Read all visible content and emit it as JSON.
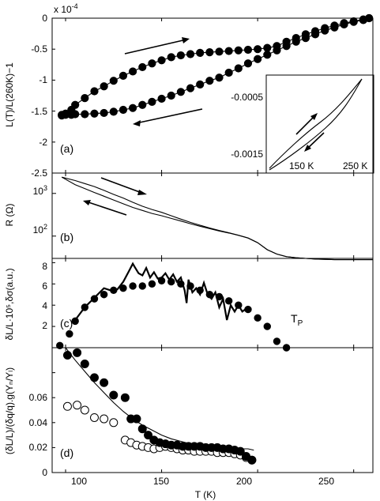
{
  "chart_data": [
    {
      "type": "line",
      "panel_label": "(a)",
      "ylabel": "L(T)/L(260K)−1",
      "y_exponent_label": "x 10",
      "y_exponent_power": "-4",
      "ylim": [
        -2.5,
        0
      ],
      "yticks": [
        "0",
        "-0.5",
        "-1",
        "-1.5",
        "-2",
        "-2.5"
      ],
      "xlim": [
        93,
        260
      ],
      "series": [
        {
          "x": [
            98,
            100,
            103,
            105,
            110,
            115,
            120,
            125,
            130,
            135,
            140,
            145,
            150,
            155,
            160,
            165,
            170,
            175,
            180,
            185,
            190,
            195,
            200,
            205,
            210,
            215,
            220,
            225,
            230,
            235,
            240,
            245,
            250,
            255,
            258
          ],
          "y": [
            -1.56,
            -1.54,
            -1.48,
            -1.4,
            -1.29,
            -1.18,
            -1.1,
            -1.01,
            -0.93,
            -0.86,
            -0.79,
            -0.73,
            -0.68,
            -0.63,
            -0.6,
            -0.58,
            -0.56,
            -0.55,
            -0.54,
            -0.53,
            -0.52,
            -0.51,
            -0.5,
            -0.48,
            -0.45,
            -0.38,
            -0.32,
            -0.26,
            -0.21,
            -0.16,
            -0.12,
            -0.08,
            -0.05,
            -0.02,
            0.0
          ]
        },
        {
          "x": [
            98,
            100,
            103,
            105,
            110,
            115,
            120,
            125,
            130,
            135,
            140,
            145,
            150,
            155,
            160,
            165,
            170,
            175,
            180,
            185,
            190,
            195,
            200,
            205,
            210,
            215,
            220,
            225,
            230,
            235,
            240,
            245,
            250,
            255,
            258
          ],
          "y": [
            -1.57,
            -1.56,
            -1.56,
            -1.55,
            -1.55,
            -1.54,
            -1.53,
            -1.51,
            -1.48,
            -1.45,
            -1.4,
            -1.35,
            -1.3,
            -1.25,
            -1.19,
            -1.13,
            -1.07,
            -1.01,
            -0.96,
            -0.88,
            -0.81,
            -0.73,
            -0.66,
            -0.59,
            -0.52,
            -0.45,
            -0.38,
            -0.32,
            -0.26,
            -0.2,
            -0.15,
            -0.1,
            -0.06,
            -0.03,
            0.0
          ]
        }
      ],
      "inset": {
        "yticks": [
          "-0.0005",
          "-0.0015"
        ],
        "xticks": [
          "150 K",
          "250 K"
        ]
      }
    },
    {
      "type": "line",
      "panel_label": "(b)",
      "ylabel": "R (Ω)",
      "yscale": "log",
      "ylim": [
        30,
        3000
      ],
      "yticks": [
        "10^3",
        "10^2"
      ],
      "xlim": [
        93,
        260
      ],
      "series": [
        {
          "x": [
            98,
            105,
            110,
            115,
            120,
            125,
            130,
            135,
            140,
            145,
            150,
            155,
            160,
            165,
            170,
            175,
            180,
            185,
            190,
            195,
            200,
            205,
            210,
            215,
            220,
            225,
            230,
            240,
            250,
            260
          ],
          "y": [
            2400,
            2000,
            1700,
            1450,
            1180,
            950,
            780,
            620,
            500,
            420,
            360,
            300,
            250,
            210,
            180,
            155,
            135,
            120,
            105,
            90,
            70,
            48,
            38,
            33,
            31,
            30,
            29,
            28,
            28,
            28
          ]
        },
        {
          "x": [
            98,
            105,
            110,
            115,
            120,
            125,
            130,
            135,
            140,
            145,
            150,
            155,
            160,
            165,
            170,
            175,
            180,
            185,
            190,
            195,
            200,
            205,
            210,
            215,
            220,
            225,
            230,
            240,
            250,
            260
          ],
          "y": [
            2400,
            1600,
            1300,
            1050,
            860,
            700,
            570,
            470,
            400,
            340,
            300,
            260,
            225,
            195,
            170,
            150,
            132,
            118,
            104,
            90,
            70,
            48,
            38,
            33,
            31,
            30,
            29,
            28,
            28,
            28
          ]
        }
      ]
    },
    {
      "type": "scatter",
      "panel_label": "(c)",
      "ylabel": "δL/L·10⁵,δσ(a.u.)",
      "ylim": [
        0,
        8.4
      ],
      "yticks": [
        "8",
        "6",
        "4",
        "2"
      ],
      "xlim": [
        93,
        260
      ],
      "annotation_main": "T",
      "annotation_sub": "P",
      "points": {
        "x": [
          97,
          102,
          105,
          110,
          115,
          120,
          125,
          130,
          135,
          140,
          145,
          150,
          155,
          160,
          165,
          170,
          175,
          180,
          185,
          190,
          195,
          200,
          205,
          210,
          215
        ],
        "y": [
          0.2,
          1.3,
          2.5,
          3.8,
          4.6,
          5.0,
          5.4,
          5.6,
          5.8,
          5.8,
          6.0,
          6.3,
          6.2,
          6.0,
          5.8,
          5.4,
          5.0,
          4.8,
          4.4,
          4.0,
          3.6,
          2.8,
          2.0,
          0.6,
          0.0
        ]
      },
      "line": {
        "x": [
          105,
          110,
          115,
          120,
          125,
          127,
          130,
          133,
          135,
          136,
          138,
          140,
          142,
          144,
          146,
          148,
          150,
          152,
          154,
          156,
          158,
          160,
          162,
          163,
          164,
          166,
          168,
          170,
          172,
          174,
          176,
          178,
          180,
          182,
          184,
          186,
          188,
          190,
          192,
          195
        ],
        "y": [
          2.6,
          3.8,
          4.7,
          5.6,
          5.3,
          5.5,
          6.2,
          7.2,
          7.9,
          7.6,
          7.0,
          6.8,
          7.5,
          6.6,
          7.1,
          6.5,
          6.6,
          7.0,
          6.4,
          6.9,
          6.2,
          6.6,
          5.4,
          4.2,
          6.4,
          5.2,
          5.6,
          5.0,
          6.1,
          5.0,
          4.6,
          5.2,
          3.8,
          4.6,
          2.6,
          4.0,
          3.4,
          4.0,
          3.4,
          3.8
        ]
      }
    },
    {
      "type": "scatter",
      "panel_label": "(d)",
      "ylabel": "(δL/L)/(δq/q).g(Yₙ/Yₗ)",
      "ylim": [
        0,
        0.1
      ],
      "yticks": [
        "0",
        "0.02",
        "0.04",
        "0.06"
      ],
      "xlim": [
        93,
        260
      ],
      "xlabel": "T (K)",
      "xticks": [
        "100",
        "150",
        "200",
        "250"
      ],
      "filled": {
        "x": [
          101,
          106,
          110,
          115,
          120,
          125,
          131,
          134,
          137,
          140,
          143,
          146,
          149,
          152,
          155,
          158,
          161,
          164,
          167,
          170,
          173,
          176,
          179,
          182,
          185,
          188,
          191,
          194,
          197
        ],
        "y": [
          0.094,
          0.096,
          0.087,
          0.076,
          0.072,
          0.062,
          0.06,
          0.043,
          0.043,
          0.035,
          0.03,
          0.026,
          0.024,
          0.023,
          0.022,
          0.022,
          0.021,
          0.021,
          0.021,
          0.021,
          0.02,
          0.02,
          0.02,
          0.019,
          0.019,
          0.018,
          0.017,
          0.013,
          0.01
        ]
      },
      "hollow": {
        "x": [
          101,
          106,
          110,
          115,
          120,
          125,
          131,
          134,
          137,
          140,
          143,
          146,
          149,
          152,
          155,
          158,
          161,
          164,
          167,
          170,
          173,
          176,
          179,
          182,
          185,
          188,
          191,
          194,
          197
        ],
        "y": [
          0.053,
          0.054,
          0.05,
          0.044,
          0.043,
          0.04,
          0.026,
          0.024,
          0.022,
          0.021,
          0.02,
          0.019,
          0.02,
          0.021,
          0.02,
          0.019,
          0.018,
          0.018,
          0.017,
          0.017,
          0.017,
          0.017,
          0.016,
          0.016,
          0.016,
          0.015,
          0.014,
          0.012,
          0.01
        ]
      },
      "fit": {
        "x": [
          100,
          105,
          110,
          115,
          120,
          125,
          130,
          135,
          140,
          145,
          150,
          155,
          160,
          165,
          170,
          175,
          180,
          185,
          190,
          195,
          198
        ],
        "y": [
          0.1,
          0.09,
          0.081,
          0.072,
          0.064,
          0.056,
          0.049,
          0.043,
          0.038,
          0.034,
          0.03,
          0.027,
          0.025,
          0.023,
          0.022,
          0.021,
          0.02,
          0.02,
          0.019,
          0.019,
          0.018
        ]
      }
    }
  ]
}
